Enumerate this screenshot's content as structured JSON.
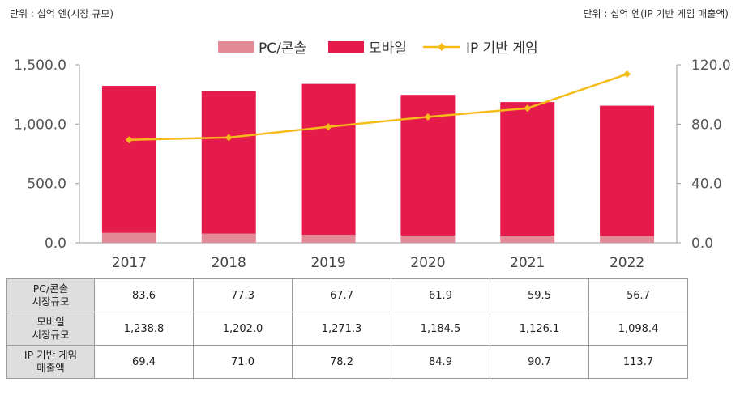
{
  "unit_left": "단위 : 십억 엔(시장 규모)",
  "unit_right": "단위 : 십억 엔(IP 기반 게임 매출액)",
  "colors": {
    "pc": "#e38a98",
    "mobile": "#e41b4b",
    "ip": "#f5bc19"
  },
  "chart_data": {
    "type": "bar",
    "stacked": true,
    "categories": [
      "2017",
      "2018",
      "2019",
      "2020",
      "2021",
      "2022"
    ],
    "series": [
      {
        "name": "PC/콘솔",
        "type": "bar",
        "axis": "left",
        "values": [
          83.6,
          77.3,
          67.7,
          61.9,
          59.5,
          56.7
        ]
      },
      {
        "name": "모바일",
        "type": "bar",
        "axis": "left",
        "values": [
          1238.8,
          1202.0,
          1271.3,
          1184.5,
          1126.1,
          1098.4
        ]
      },
      {
        "name": "IP 기반 게임",
        "type": "line",
        "axis": "right",
        "values": [
          69.4,
          71.0,
          78.2,
          84.9,
          90.7,
          113.7
        ]
      }
    ],
    "y_left": {
      "range": [
        0,
        1500
      ],
      "ticks": [
        "0.0",
        "500.0",
        "1,000.0",
        "1,500.0"
      ]
    },
    "y_right": {
      "range": [
        0,
        120
      ],
      "ticks": [
        "0.0",
        "40.0",
        "80.0",
        "120.0"
      ]
    },
    "grid": false,
    "legend_position": "top-center"
  },
  "table": {
    "rows": [
      {
        "label": [
          "PC/콘솔",
          "시장규모"
        ],
        "values": [
          "83.6",
          "77.3",
          "67.7",
          "61.9",
          "59.5",
          "56.7"
        ]
      },
      {
        "label": [
          "모바일",
          "시장규모"
        ],
        "values": [
          "1,238.8",
          "1,202.0",
          "1,271.3",
          "1,184.5",
          "1,126.1",
          "1,098.4"
        ]
      },
      {
        "label": [
          "IP 기반 게임",
          "매출액"
        ],
        "values": [
          "69.4",
          "71.0",
          "78.2",
          "84.9",
          "90.7",
          "113.7"
        ]
      }
    ]
  }
}
